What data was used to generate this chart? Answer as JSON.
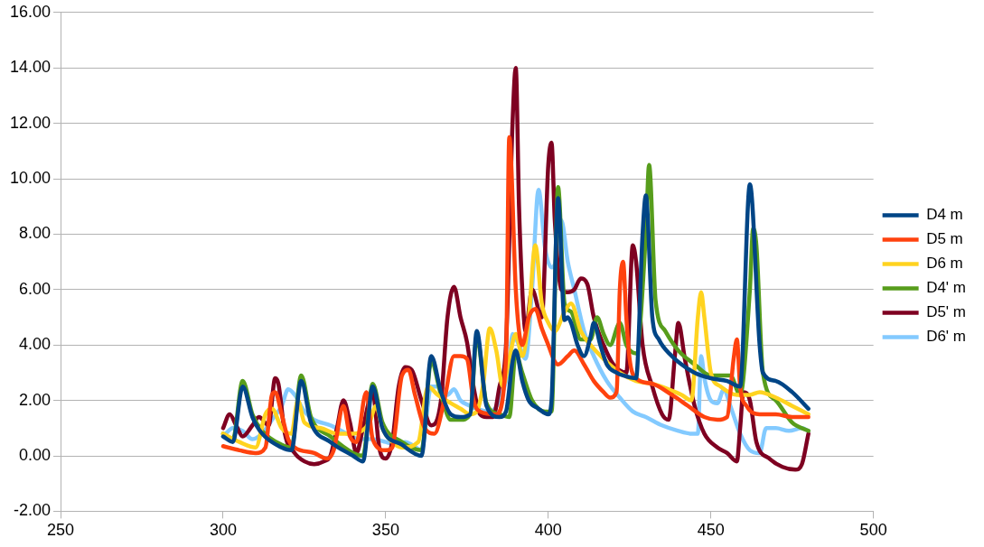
{
  "chart_data": {
    "type": "line",
    "xlim": [
      250,
      500
    ],
    "xticks": [
      250,
      300,
      350,
      400,
      450,
      500
    ],
    "ylim": [
      -2,
      16
    ],
    "yticks": [
      {
        "value": -2,
        "label": "-2.00"
      },
      {
        "value": 0,
        "label": "0.00"
      },
      {
        "value": 2,
        "label": "2.00"
      },
      {
        "value": 4,
        "label": "4.00"
      },
      {
        "value": 6,
        "label": "6.00"
      },
      {
        "value": 8,
        "label": "8.00"
      },
      {
        "value": 10,
        "label": "10.00"
      },
      {
        "value": 12,
        "label": "12.00"
      },
      {
        "value": 14,
        "label": "14.00"
      },
      {
        "value": 16,
        "label": "16.00"
      }
    ],
    "grid": "y",
    "legend": "right",
    "marker": "none",
    "line_style": "solid",
    "series": [
      {
        "name": "D4 m",
        "color": "#004586",
        "x": [
          300,
          303,
          306,
          309,
          312,
          318,
          321,
          324,
          327,
          333,
          340,
          343,
          346,
          349,
          355,
          361,
          364,
          367,
          370,
          373,
          376,
          378,
          381,
          385,
          387,
          389,
          390,
          392,
          394,
          397,
          400,
          401,
          403,
          405,
          406,
          407,
          409,
          411,
          413,
          414,
          416,
          418,
          421,
          423,
          427,
          429,
          430,
          432,
          434,
          438,
          441,
          445,
          450,
          455,
          459,
          462,
          465,
          466,
          470,
          475,
          480
        ],
        "values": [
          0.7,
          0.5,
          2.5,
          1.4,
          0.8,
          0.3,
          0.2,
          2.7,
          1.2,
          0.5,
          0,
          -0.2,
          2.5,
          1,
          0.4,
          0,
          3.6,
          2.3,
          1.5,
          1.4,
          1.5,
          4.5,
          1.8,
          1.4,
          1.6,
          3.4,
          3.8,
          2.7,
          2,
          1.7,
          1.5,
          2,
          9.3,
          4.9,
          5,
          4.8,
          4,
          3.6,
          4.3,
          4.8,
          4,
          3.3,
          3,
          2.9,
          2.8,
          8,
          9.4,
          5,
          4.2,
          3.6,
          3.3,
          3,
          2.8,
          2.7,
          2.5,
          9.8,
          4,
          3,
          2.7,
          2.3,
          1.7
        ]
      },
      {
        "name": "D5 m",
        "color": "#ff420e",
        "x": [
          300,
          305,
          310,
          313,
          315,
          316,
          318,
          320,
          322,
          328,
          332,
          334,
          337,
          339,
          341,
          344,
          346,
          350,
          352,
          355,
          357,
          359,
          362,
          365,
          368,
          371,
          373,
          375,
          377,
          379,
          384,
          387,
          388,
          390,
          391,
          392,
          394,
          396,
          398,
          400,
          402,
          403,
          406,
          408,
          411,
          414,
          417,
          419,
          421,
          422,
          423,
          424,
          425,
          427,
          432,
          438,
          443,
          448,
          452,
          455,
          457,
          458,
          459,
          461,
          465,
          470,
          475,
          480
        ],
        "values": [
          0.35,
          0.2,
          0.1,
          0.3,
          2.2,
          2.3,
          1.5,
          0.6,
          0.3,
          0.1,
          -0.1,
          0.2,
          1.8,
          0.7,
          0.5,
          2.3,
          0.6,
          0.2,
          0.3,
          2.9,
          3.1,
          2.2,
          1,
          0.8,
          2,
          3.6,
          3.6,
          3.5,
          2,
          1.6,
          1.5,
          3.5,
          11.5,
          6,
          4.5,
          4,
          5,
          5.3,
          4.6,
          4,
          3.4,
          3.3,
          3.6,
          3.8,
          3.3,
          2.7,
          2.3,
          2.1,
          2.3,
          6,
          7,
          5,
          3.5,
          2.8,
          2.6,
          2.2,
          1.8,
          1.4,
          1.3,
          1.4,
          3.5,
          4.2,
          2.5,
          1.8,
          1.5,
          1.5,
          1.4,
          1.4
        ]
      },
      {
        "name": "D6 m",
        "color": "#ffd320",
        "x": [
          300,
          305,
          310,
          313,
          315,
          318,
          321,
          323,
          325,
          330,
          335,
          340,
          345,
          347,
          349,
          352,
          355,
          360,
          363,
          366,
          370,
          373,
          376,
          378,
          380,
          382,
          384,
          386,
          388,
          390,
          392,
          394,
          396,
          398,
          400,
          402,
          405,
          407,
          410,
          413,
          417,
          422,
          427,
          432,
          437,
          441,
          444,
          446,
          447,
          448,
          450,
          453,
          458,
          462,
          465,
          470,
          475,
          480
        ],
        "values": [
          0.8,
          0.5,
          0.3,
          1.5,
          1.7,
          1,
          0.8,
          2,
          1.2,
          1,
          0.8,
          0.8,
          1.2,
          1.8,
          1,
          0.5,
          0.3,
          0.5,
          2.5,
          2.2,
          1.9,
          1.7,
          1.5,
          1.6,
          2.6,
          4.6,
          3.8,
          2.5,
          3.5,
          4.4,
          3.6,
          5,
          7.6,
          5.5,
          4.8,
          4.5,
          5.2,
          5.5,
          4.5,
          4,
          3.5,
          3,
          2.7,
          2.6,
          2.4,
          2.2,
          2,
          5,
          5.9,
          5,
          3,
          2.5,
          2.2,
          2.2,
          2.3,
          2.1,
          1.8,
          1.5
        ]
      },
      {
        "name": "D4' m",
        "color": "#579d1c",
        "x": [
          300,
          303,
          306,
          309,
          312,
          318,
          321,
          324,
          327,
          333,
          340,
          343,
          346,
          349,
          355,
          361,
          364,
          367,
          370,
          373,
          376,
          378,
          381,
          385,
          388,
          390,
          392,
          395,
          399,
          401,
          403,
          405,
          407,
          410,
          413,
          415,
          417,
          419,
          422,
          424,
          427,
          430,
          431,
          433,
          436,
          440,
          445,
          450,
          454,
          456,
          459,
          462,
          463,
          464,
          466,
          470,
          475,
          480
        ],
        "values": [
          0.8,
          0.6,
          2.7,
          1.5,
          0.9,
          0.4,
          0.3,
          2.9,
          1.4,
          0.7,
          0.1,
          0,
          2.6,
          1.2,
          0.5,
          0.2,
          3.4,
          2.2,
          1.3,
          1.3,
          1.5,
          4.3,
          1.9,
          1.5,
          1.4,
          3.7,
          3,
          2,
          1.6,
          1.6,
          9.7,
          5.5,
          5.2,
          4.2,
          4.2,
          5,
          4.4,
          4,
          4.8,
          4,
          3.7,
          8,
          10.5,
          5.6,
          4.5,
          3.8,
          3.3,
          2.9,
          2.9,
          2.9,
          2.2,
          6,
          8.2,
          7.6,
          3,
          2,
          1.2,
          0.9
        ]
      },
      {
        "name": "D5' m",
        "color": "#7e0021",
        "x": [
          300,
          302,
          304,
          306,
          309,
          311,
          314,
          316,
          317,
          319,
          322,
          325,
          328,
          331,
          333,
          335,
          337,
          339,
          341,
          343,
          346,
          348,
          350,
          352,
          354,
          356,
          358,
          361,
          364,
          367,
          369,
          371,
          373,
          375,
          377,
          379,
          381,
          383,
          385,
          387,
          389,
          390,
          391,
          392,
          393,
          395,
          398,
          400,
          401,
          402,
          404,
          406,
          408,
          410,
          412,
          414,
          417,
          420,
          424,
          426,
          427,
          429,
          432,
          435,
          437,
          439,
          440,
          442,
          445,
          448,
          452,
          455,
          458,
          459,
          460,
          462,
          464,
          468,
          472,
          476,
          478,
          480
        ],
        "values": [
          1,
          1.5,
          1.1,
          0.7,
          1.1,
          1.4,
          1.1,
          2.8,
          2.6,
          0.8,
          0.1,
          -0.2,
          -0.3,
          -0.2,
          0,
          1,
          2,
          1.2,
          0.1,
          1,
          2.3,
          0.3,
          -0.1,
          0.5,
          2.5,
          3.2,
          3.1,
          2,
          1.1,
          2,
          5,
          6.1,
          5,
          4.1,
          2.5,
          1.5,
          1.4,
          1.4,
          2.5,
          4,
          12,
          14,
          9,
          6,
          4.5,
          6,
          5,
          10.5,
          11.3,
          8.5,
          6,
          5.9,
          6,
          6.4,
          6.2,
          5,
          4,
          3.3,
          3,
          7.6,
          7,
          4,
          2.5,
          1.5,
          1.3,
          3.7,
          4.8,
          3.5,
          1.8,
          0.8,
          0.3,
          0.1,
          -0.2,
          1,
          2.3,
          2,
          0.5,
          -0.1,
          -0.4,
          -0.5,
          -0.3,
          0.8
        ]
      },
      {
        "name": "D6' m",
        "color": "#83caff",
        "x": [
          300,
          303,
          306,
          309,
          312,
          315,
          318,
          320,
          322,
          325,
          328,
          333,
          338,
          342,
          346,
          350,
          353,
          356,
          358,
          361,
          364,
          367,
          369,
          371,
          373,
          376,
          378,
          382,
          385,
          388,
          389,
          391,
          393,
          395,
          397,
          399,
          401,
          402,
          404,
          406,
          408,
          411,
          414,
          418,
          422,
          426,
          430,
          435,
          440,
          444,
          446,
          447,
          448,
          450,
          452,
          454,
          456,
          459,
          462,
          465,
          467,
          470,
          474,
          478,
          480
        ],
        "values": [
          0.7,
          1,
          0.9,
          0.6,
          0.8,
          1.3,
          1.8,
          2.4,
          2.2,
          1.6,
          1.3,
          1.1,
          0.8,
          0.6,
          0.6,
          0.5,
          0.4,
          0.5,
          0.4,
          0.2,
          2.5,
          2.5,
          2.2,
          2.4,
          2,
          1.8,
          1.7,
          1.6,
          2,
          3.3,
          4.4,
          4,
          3.5,
          6,
          9.6,
          7.5,
          6.8,
          6.9,
          8.5,
          7,
          6,
          4.5,
          3.6,
          2.7,
          2.1,
          1.6,
          1.4,
          1.1,
          0.9,
          0.8,
          0.8,
          3.6,
          2.8,
          2,
          1.9,
          2.4,
          1.8,
          0.8,
          0.2,
          0.1,
          1,
          1,
          0.9,
          1,
          0.9
        ]
      }
    ]
  }
}
